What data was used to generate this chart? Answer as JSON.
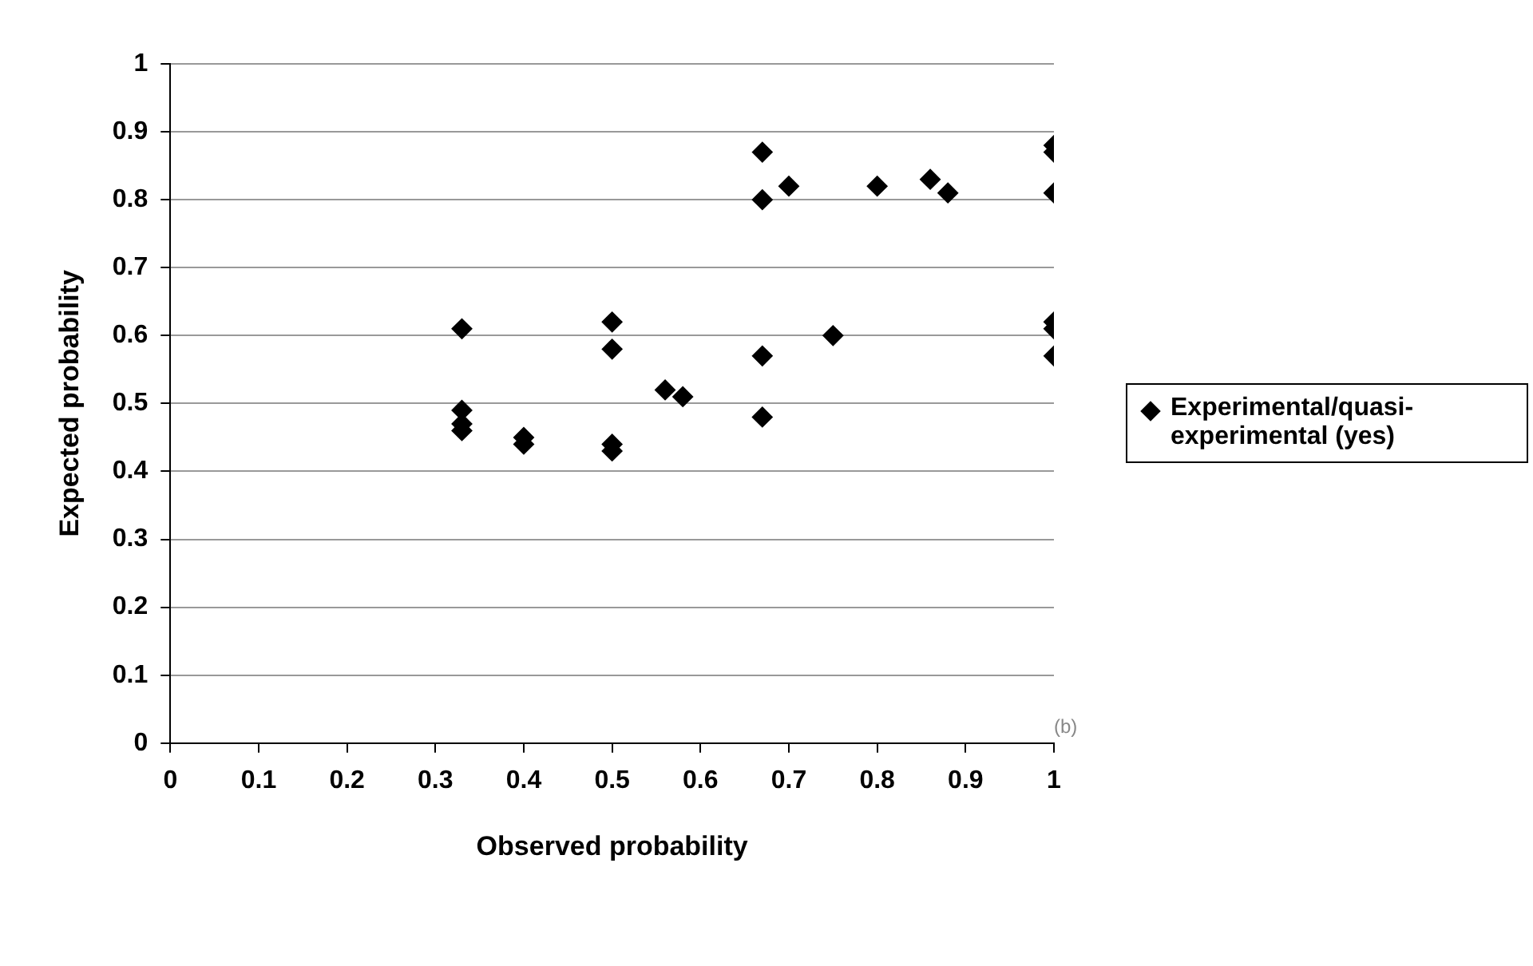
{
  "chart_data": {
    "type": "scatter",
    "xlabel": "Observed probability",
    "ylabel": "Expected probability",
    "x": [
      0.33,
      0.33,
      0.33,
      0.33,
      0.4,
      0.4,
      0.5,
      0.5,
      0.5,
      0.5,
      0.56,
      0.58,
      0.67,
      0.67,
      0.67,
      0.67,
      0.7,
      0.75,
      0.8,
      0.86,
      0.88,
      1,
      1,
      1,
      1,
      1,
      1
    ],
    "series": [
      {
        "name": "Experimental/quasi-experimental (yes)",
        "color": "#000000",
        "values": [
          0.61,
          0.49,
          0.47,
          0.46,
          0.44,
          0.45,
          0.62,
          0.58,
          0.43,
          0.44,
          0.52,
          0.51,
          0.87,
          0.8,
          0.57,
          0.48,
          0.82,
          0.6,
          0.82,
          0.83,
          0.81,
          0.88,
          0.87,
          0.81,
          0.62,
          0.61,
          0.57
        ]
      }
    ],
    "xlim": [
      0,
      1
    ],
    "xticks": [
      0,
      0.1,
      0.2,
      0.3,
      0.4,
      0.5,
      0.6,
      0.7,
      0.8,
      0.9,
      1
    ],
    "ylim": [
      0,
      1
    ],
    "yticks": [
      0,
      0.1,
      0.2,
      0.3,
      0.4,
      0.5,
      0.6,
      0.7,
      0.8,
      0.9,
      1
    ],
    "grid": "y",
    "legend": "right",
    "marker": "diamond",
    "annotations": [
      "(b)"
    ]
  }
}
